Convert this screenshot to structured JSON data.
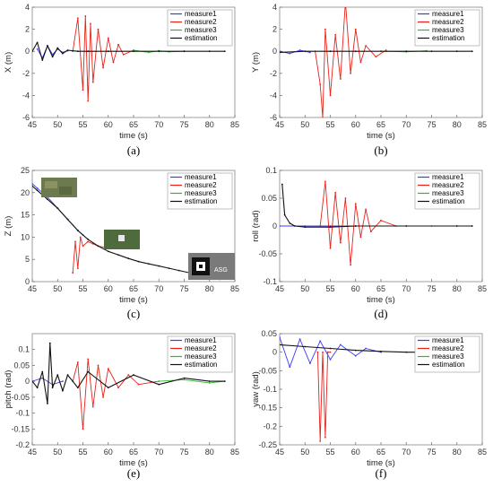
{
  "chart_data": [
    {
      "id": "a",
      "type": "line",
      "panel_label": "(a)",
      "xlabel": "time (s)",
      "ylabel": "X (m)",
      "xlim": [
        45,
        85
      ],
      "ylim": [
        -6,
        4
      ],
      "xticks": [
        45,
        50,
        55,
        60,
        65,
        70,
        75,
        80,
        85
      ],
      "yticks": [
        -6,
        -4,
        -2,
        0,
        2,
        4
      ],
      "legend_position": "top-right",
      "series": [
        {
          "name": "measure1",
          "color": "#3b3bff",
          "x": [
            46,
            47,
            48,
            49,
            50,
            51,
            52
          ],
          "y": [
            0.2,
            -0.6,
            0.5,
            -0.3,
            0.2,
            -0.1,
            0.05
          ]
        },
        {
          "name": "measure2",
          "color": "#e8221b",
          "x": [
            53,
            54,
            55,
            55.5,
            56,
            56.5,
            57,
            58,
            59,
            60,
            61,
            62,
            63,
            65
          ],
          "y": [
            0.0,
            3.0,
            -3.5,
            3.2,
            -4.5,
            2.5,
            -2.8,
            2.0,
            -1.5,
            1.2,
            -1.0,
            0.6,
            -0.3,
            0.1
          ]
        },
        {
          "name": "measure3",
          "color": "#2db82d",
          "x": [
            65,
            68,
            70,
            72,
            75
          ],
          "y": [
            0.1,
            -0.1,
            0.05,
            -0.05,
            0.0
          ]
        },
        {
          "name": "estimation",
          "color": "#111111",
          "x": [
            45,
            46,
            47,
            48,
            49,
            50,
            51,
            52,
            54,
            56,
            60,
            65,
            70,
            75,
            80,
            83
          ],
          "y": [
            0.0,
            0.8,
            -0.8,
            0.5,
            -0.5,
            0.3,
            -0.2,
            0.1,
            0.0,
            0.0,
            0.0,
            0.0,
            0.0,
            0.0,
            0.0,
            0.0
          ]
        }
      ]
    },
    {
      "id": "b",
      "type": "line",
      "panel_label": "(b)",
      "xlabel": "time (s)",
      "ylabel": "Y (m)",
      "xlim": [
        45,
        85
      ],
      "ylim": [
        -6,
        4
      ],
      "xticks": [
        45,
        50,
        55,
        60,
        65,
        70,
        75,
        80,
        85
      ],
      "yticks": [
        -6,
        -4,
        -2,
        0,
        2,
        4
      ],
      "legend_position": "top-right",
      "series": [
        {
          "name": "measure1",
          "color": "#3b3bff",
          "x": [
            45,
            47,
            49,
            51
          ],
          "y": [
            0.0,
            -0.2,
            0.1,
            -0.1
          ]
        },
        {
          "name": "measure2",
          "color": "#e8221b",
          "x": [
            52,
            53,
            53.5,
            54,
            55,
            56,
            57,
            58,
            59,
            60,
            61,
            62,
            64,
            66
          ],
          "y": [
            0.0,
            -3.0,
            -6.0,
            2.0,
            -4.0,
            1.5,
            -2.5,
            4.5,
            -2.0,
            2.0,
            -1.0,
            0.5,
            -0.5,
            0.1
          ]
        },
        {
          "name": "measure3",
          "color": "#2db82d",
          "x": [
            66,
            70,
            74
          ],
          "y": [
            0.0,
            -0.05,
            0.05
          ]
        },
        {
          "name": "estimation",
          "color": "#111111",
          "x": [
            45,
            50,
            55,
            60,
            65,
            70,
            75,
            80,
            83
          ],
          "y": [
            -0.1,
            0.0,
            0.0,
            0.0,
            0.0,
            0.0,
            0.0,
            0.0,
            0.0
          ]
        }
      ]
    },
    {
      "id": "c",
      "type": "line",
      "panel_label": "(c)",
      "xlabel": "time (s)",
      "ylabel": "Z (m)",
      "xlim": [
        45,
        85
      ],
      "ylim": [
        0,
        25
      ],
      "xticks": [
        45,
        50,
        55,
        60,
        65,
        70,
        75,
        80,
        85
      ],
      "yticks": [
        0,
        5,
        10,
        15,
        20,
        25
      ],
      "legend_position": "top-right",
      "series": [
        {
          "name": "measure1",
          "color": "#3b3bff",
          "x": [
            45,
            46,
            48,
            50,
            52,
            54,
            55
          ],
          "y": [
            22,
            21,
            19,
            16.5,
            14,
            11.5,
            10.5
          ]
        },
        {
          "name": "measure2",
          "color": "#e8221b",
          "x": [
            53,
            53.5,
            54,
            54.5,
            55,
            56,
            57,
            58,
            60
          ],
          "y": [
            2,
            9,
            3,
            10,
            8,
            9,
            8.5,
            8,
            7.5
          ]
        },
        {
          "name": "measure3",
          "color": "#2db82d",
          "x": [
            76,
            78,
            80,
            82
          ],
          "y": [
            1.5,
            1.0,
            0.7,
            0.5
          ]
        },
        {
          "name": "estimation",
          "color": "#111111",
          "x": [
            45,
            46,
            48,
            50,
            52,
            54,
            56,
            58,
            60,
            62,
            64,
            66,
            68,
            70,
            72,
            74,
            76,
            78,
            80,
            82,
            83
          ],
          "y": [
            21.5,
            20.5,
            18.5,
            16.5,
            14,
            11.5,
            9.5,
            8,
            6.8,
            6,
            5.2,
            4.5,
            4,
            3.5,
            3,
            2.5,
            2,
            1.5,
            1,
            0.7,
            0.6
          ]
        }
      ],
      "inset_text": "ASG"
    },
    {
      "id": "d",
      "type": "line",
      "panel_label": "(d)",
      "xlabel": "time (s)",
      "ylabel": "roll (rad)",
      "xlim": [
        45,
        85
      ],
      "ylim": [
        -0.1,
        0.1
      ],
      "xticks": [
        45,
        50,
        55,
        60,
        65,
        70,
        75,
        80,
        85
      ],
      "yticks": [
        -0.1,
        -0.05,
        0,
        0.05,
        0.1
      ],
      "ytick_labels": [
        "-0.1",
        "-0.05",
        "0",
        "0.05",
        "0.1"
      ],
      "legend_position": "top-right",
      "series": [
        {
          "name": "measure1",
          "color": "#3b3bff",
          "x": [
            45,
            50,
            55,
            60
          ],
          "y": [
            0.0,
            0.0,
            0.0,
            0.0
          ]
        },
        {
          "name": "measure2",
          "color": "#e8221b",
          "x": [
            53,
            54,
            55,
            56,
            57,
            58,
            59,
            60,
            61,
            62,
            63,
            65,
            68
          ],
          "y": [
            0.0,
            0.08,
            -0.04,
            0.06,
            -0.03,
            0.05,
            -0.07,
            0.04,
            -0.02,
            0.03,
            -0.01,
            0.01,
            0.0
          ]
        },
        {
          "name": "measure3",
          "color": "#2db82d",
          "x": [
            70,
            75,
            80,
            83
          ],
          "y": [
            0.0,
            0.0,
            0.0,
            0.0
          ]
        },
        {
          "name": "estimation",
          "color": "#111111",
          "x": [
            45.5,
            46,
            47,
            48,
            50,
            55,
            60,
            70,
            80,
            83
          ],
          "y": [
            0.075,
            0.02,
            0.005,
            0.0,
            -0.002,
            -0.002,
            0.0,
            0.0,
            0.0,
            0.0
          ]
        }
      ]
    },
    {
      "id": "e",
      "type": "line",
      "panel_label": "(e)",
      "xlabel": "time (s)",
      "ylabel": "pitch (rad)",
      "xlim": [
        45,
        85
      ],
      "ylim": [
        -0.2,
        0.15
      ],
      "xticks": [
        45,
        50,
        55,
        60,
        65,
        70,
        75,
        80,
        85
      ],
      "yticks": [
        -0.2,
        -0.15,
        -0.1,
        -0.05,
        0,
        0.05,
        0.1
      ],
      "ytick_labels": [
        "-0.2",
        "-0.15",
        "-0.1",
        "-0.05",
        "0",
        "0.05",
        "0.1"
      ],
      "legend_position": "top-right",
      "series": [
        {
          "name": "measure1",
          "color": "#3b3bff",
          "x": [
            45,
            47,
            49,
            51
          ],
          "y": [
            0.0,
            0.01,
            -0.01,
            0.0
          ]
        },
        {
          "name": "measure2",
          "color": "#e8221b",
          "x": [
            53,
            54,
            55,
            56,
            57,
            58,
            59,
            60,
            62,
            64,
            66,
            70
          ],
          "y": [
            0.0,
            0.06,
            -0.15,
            0.07,
            -0.08,
            0.05,
            -0.05,
            0.04,
            -0.02,
            0.02,
            -0.01,
            0.0
          ]
        },
        {
          "name": "measure3",
          "color": "#2db82d",
          "x": [
            70,
            75,
            80,
            83
          ],
          "y": [
            0.0,
            0.005,
            -0.005,
            0.0
          ]
        },
        {
          "name": "estimation",
          "color": "#111111",
          "x": [
            45,
            46,
            47,
            48,
            48.5,
            49,
            50,
            51,
            52,
            54,
            56,
            60,
            65,
            70,
            75,
            80,
            83
          ],
          "y": [
            0.0,
            -0.02,
            0.03,
            -0.07,
            0.12,
            -0.02,
            0.02,
            -0.03,
            0.02,
            -0.02,
            0.03,
            -0.02,
            0.02,
            -0.01,
            0.01,
            0.0,
            0.0
          ]
        }
      ]
    },
    {
      "id": "f",
      "type": "line",
      "panel_label": "(f)",
      "xlabel": "time (s)",
      "ylabel": "yaw (rad)",
      "xlim": [
        45,
        85
      ],
      "ylim": [
        -0.25,
        0.05
      ],
      "xticks": [
        45,
        50,
        55,
        60,
        65,
        70,
        75,
        80,
        85
      ],
      "yticks": [
        -0.25,
        -0.2,
        -0.15,
        -0.1,
        -0.05,
        0,
        0.05
      ],
      "ytick_labels": [
        "-0.25",
        "-0.2",
        "-0.15",
        "-0.1",
        "-0.05",
        "0",
        "0.05"
      ],
      "legend_position": "top-right",
      "series": [
        {
          "name": "measure1",
          "color": "#3b3bff",
          "x": [
            45,
            47,
            49,
            51,
            53,
            55,
            57,
            60,
            62,
            65
          ],
          "y": [
            0.04,
            -0.04,
            0.035,
            -0.03,
            0.03,
            -0.02,
            0.02,
            -0.01,
            0.01,
            0.0
          ]
        },
        {
          "name": "measure2",
          "color": "#e8221b",
          "x": [
            52.5,
            53,
            53.5,
            54,
            54.5,
            55
          ],
          "y": [
            0.0,
            -0.24,
            0.0,
            -0.23,
            0.0,
            0.0
          ]
        },
        {
          "name": "measure3",
          "color": "#2db82d",
          "x": [
            74,
            76,
            78,
            80,
            83
          ],
          "y": [
            0.0,
            0.002,
            -0.002,
            0.0,
            0.0
          ]
        },
        {
          "name": "estimation",
          "color": "#111111",
          "x": [
            45,
            50,
            55,
            60,
            65,
            70,
            75,
            80,
            83
          ],
          "y": [
            0.02,
            0.015,
            0.01,
            0.005,
            0.002,
            0.0,
            0.0,
            0.0,
            0.0
          ]
        }
      ]
    }
  ]
}
